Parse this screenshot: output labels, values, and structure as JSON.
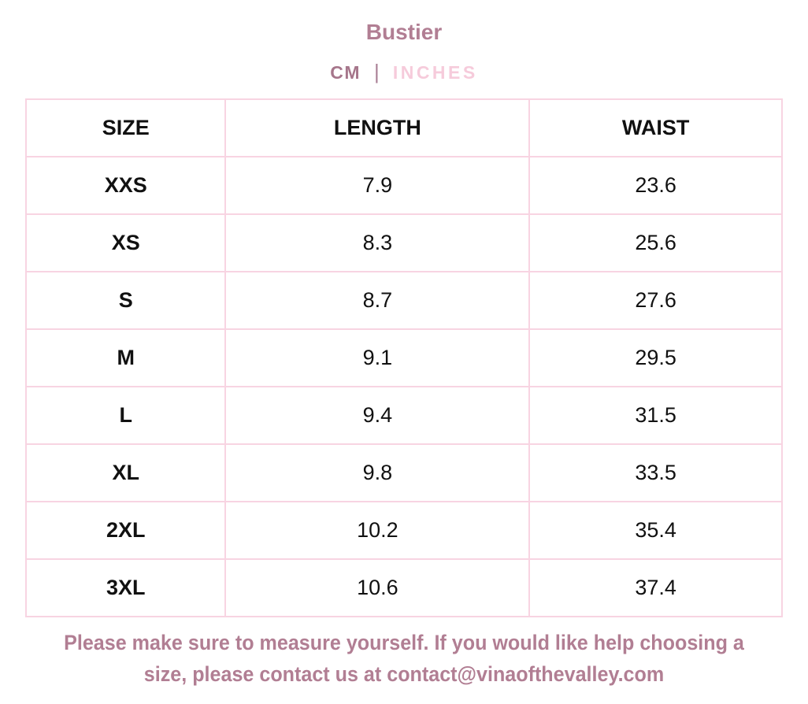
{
  "header": {
    "title": "Bustier",
    "units": {
      "cm": "CM",
      "divider": "|",
      "inches": "INCHES",
      "active": "CM"
    }
  },
  "table": {
    "columns": {
      "size": "SIZE",
      "length": "LENGTH",
      "waist": "WAIST"
    },
    "rows": [
      {
        "size": "XXS",
        "length": "7.9",
        "waist": "23.6"
      },
      {
        "size": "XS",
        "length": "8.3",
        "waist": "25.6"
      },
      {
        "size": "S",
        "length": "8.7",
        "waist": "27.6"
      },
      {
        "size": "M",
        "length": "9.1",
        "waist": "29.5"
      },
      {
        "size": "L",
        "length": "9.4",
        "waist": "31.5"
      },
      {
        "size": "XL",
        "length": "9.8",
        "waist": "33.5"
      },
      {
        "size": "2XL",
        "length": "10.2",
        "waist": "35.4"
      },
      {
        "size": "3XL",
        "length": "10.6",
        "waist": "37.4"
      }
    ]
  },
  "footer": {
    "lines": [
      "Please make sure to measure yourself. If you would like help choosing a",
      "size, please contact us at contact@vinaofthevalley.com"
    ]
  },
  "colors": {
    "title_mauve": "#b17e93",
    "unit_active": "#a6768b",
    "unit_inactive": "#f6cbdb",
    "table_border": "#f8d4e2",
    "cell_text": "#111111"
  }
}
